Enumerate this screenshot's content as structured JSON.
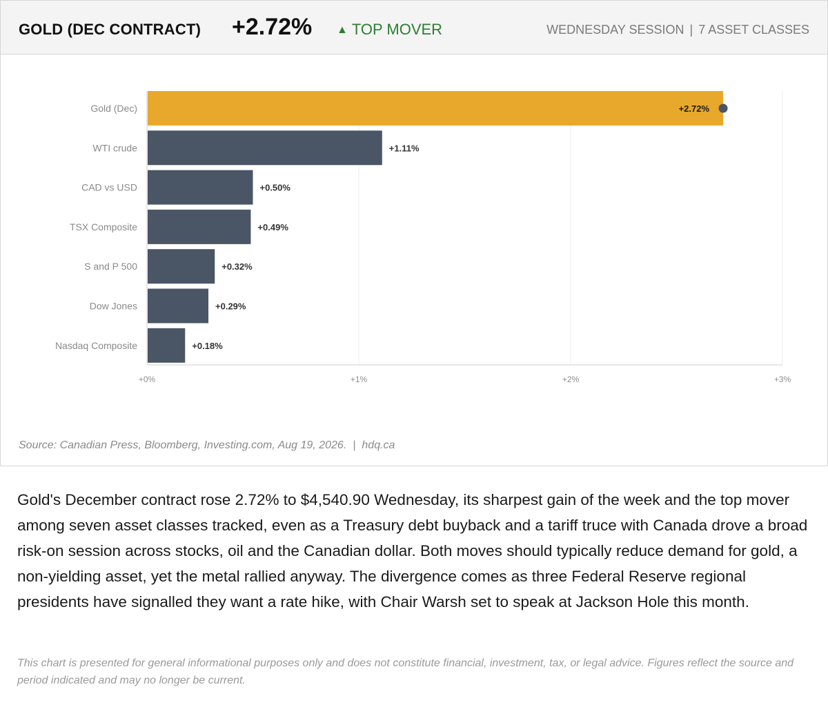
{
  "header": {
    "title": "GOLD (DEC CONTRACT)",
    "value": "+2.72%",
    "badge_icon": "triangle-up-icon",
    "badge_label": "TOP MOVER",
    "session": "WEDNESDAY SESSION",
    "separator": "|",
    "asset_count": "7 ASSET CLASSES"
  },
  "chart_data": {
    "type": "bar",
    "orientation": "horizontal",
    "categories": [
      "Gold (Dec)",
      "WTI crude",
      "CAD vs USD",
      "TSX Composite",
      "S and P 500",
      "Dow Jones",
      "Nasdaq Composite"
    ],
    "values": [
      2.72,
      1.11,
      0.5,
      0.49,
      0.32,
      0.29,
      0.18
    ],
    "data_labels": [
      "+2.72%",
      "+1.11%",
      "+0.50%",
      "+0.49%",
      "+0.32%",
      "+0.29%",
      "+0.18%"
    ],
    "highlight_index": 0,
    "xlim": [
      0,
      3
    ],
    "x_ticks": [
      0,
      1,
      2,
      3
    ],
    "x_tick_labels": [
      "+0%",
      "+1%",
      "+2%",
      "+3%"
    ],
    "grid": "vertical",
    "legend": "none",
    "colors": {
      "highlight": "#e8a82b",
      "default": "#4a5565",
      "marker": "#4a5565"
    }
  },
  "source": {
    "text": "Source: Canadian Press, Bloomberg, Investing.com, Aug 19, 2026.",
    "separator": "|",
    "site": "hdq.ca"
  },
  "summary": "Gold's December contract rose 2.72% to $4,540.90 Wednesday, its sharpest gain of the week and the top mover among seven asset classes tracked, even as a Treasury debt buyback and a tariff truce with Canada drove a broad risk-on session across stocks, oil and the Canadian dollar. Both moves should typically reduce demand for gold, a non-yielding asset, yet the metal rallied anyway. The divergence comes as three Federal Reserve regional presidents have signalled they want a rate hike, with Chair Warsh set to speak at Jackson Hole this month.",
  "disclaimer": "This chart is presented for general informational purposes only and does not constitute financial, investment, tax, or legal advice. Figures reflect the source and period indicated and may no longer be current."
}
